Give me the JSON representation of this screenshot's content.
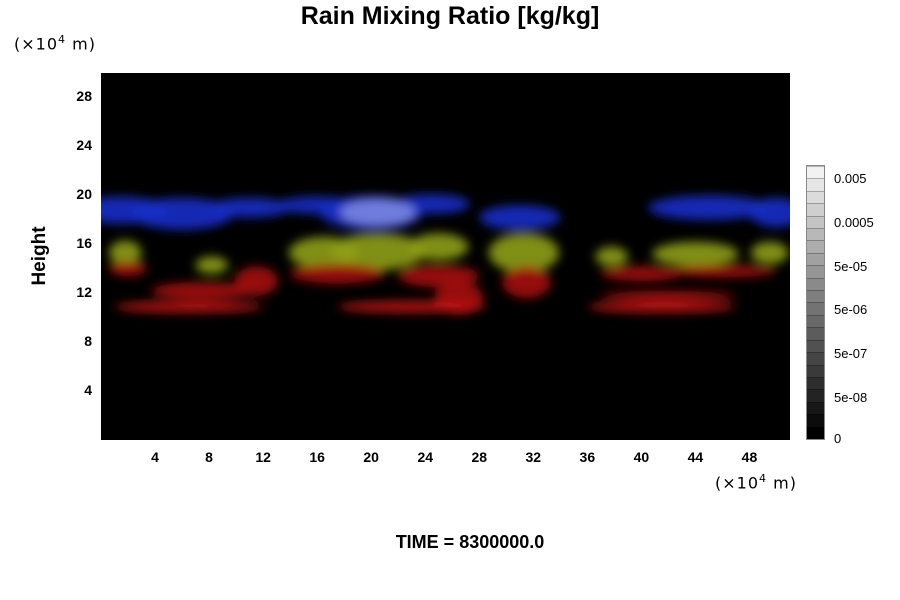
{
  "chart_data": {
    "type": "heatmap",
    "title": "Rain Mixing Ratio [kg/kg]",
    "ylabel": "Height",
    "xlabel": "",
    "x_unit_prefix": "(×10",
    "x_unit_exp": "4",
    "x_unit_suffix": " m)",
    "y_unit_prefix": "(×10",
    "y_unit_exp": "4",
    "y_unit_suffix": " m)",
    "xlim": [
      0,
      51
    ],
    "ylim": [
      0,
      30
    ],
    "x_ticks": [
      4,
      8,
      12,
      16,
      20,
      24,
      28,
      32,
      36,
      40,
      44,
      48
    ],
    "y_ticks": [
      4,
      8,
      12,
      16,
      20,
      24,
      28
    ],
    "background": "#000000",
    "colorbar": {
      "labels": [
        "0.005",
        "0.0005",
        "5e-05",
        "5e-06",
        "5e-07",
        "5e-08",
        "0"
      ],
      "levels": 22,
      "colors": [
        "#000000",
        "#f2f2f2"
      ]
    },
    "layers": [
      {
        "color": "#1a2ec8",
        "blobs": [
          {
            "x": 1.5,
            "y": 18.8,
            "rx": 3.5,
            "ry": 1.1
          },
          {
            "x": 6,
            "y": 18.5,
            "rx": 3.8,
            "ry": 1.3
          },
          {
            "x": 11,
            "y": 19.0,
            "rx": 3,
            "ry": 0.8
          },
          {
            "x": 16,
            "y": 19.2,
            "rx": 3,
            "ry": 0.7
          },
          {
            "x": 20,
            "y": 18.6,
            "rx": 3.8,
            "ry": 1.4
          },
          {
            "x": 24.5,
            "y": 19.3,
            "rx": 2.8,
            "ry": 0.8
          },
          {
            "x": 31,
            "y": 18.2,
            "rx": 3,
            "ry": 1.0
          },
          {
            "x": 45,
            "y": 19.0,
            "rx": 4.5,
            "ry": 1.0
          },
          {
            "x": 50,
            "y": 18.6,
            "rx": 2,
            "ry": 1.2
          }
        ]
      },
      {
        "color": "#7a86e0",
        "blobs": [
          {
            "x": 20.5,
            "y": 18.6,
            "rx": 2.8,
            "ry": 1.1
          }
        ]
      },
      {
        "color": "#8e9e18",
        "blobs": [
          {
            "x": 1.8,
            "y": 15.3,
            "rx": 1.2,
            "ry": 1.0
          },
          {
            "x": 8.2,
            "y": 14.3,
            "rx": 1.2,
            "ry": 0.7
          },
          {
            "x": 16.5,
            "y": 15.3,
            "rx": 2.6,
            "ry": 1.3
          },
          {
            "x": 20.5,
            "y": 15.4,
            "rx": 3.5,
            "ry": 1.5
          },
          {
            "x": 25,
            "y": 15.8,
            "rx": 2.2,
            "ry": 1.1
          },
          {
            "x": 31.3,
            "y": 15.3,
            "rx": 2.6,
            "ry": 1.6
          },
          {
            "x": 37.8,
            "y": 15.0,
            "rx": 1.2,
            "ry": 0.8
          },
          {
            "x": 44,
            "y": 15.2,
            "rx": 3.2,
            "ry": 1.0
          },
          {
            "x": 49.5,
            "y": 15.3,
            "rx": 1.4,
            "ry": 0.9
          }
        ]
      },
      {
        "color": "#a51010",
        "blobs": [
          {
            "x": 2,
            "y": 14.0,
            "rx": 1.4,
            "ry": 0.6
          },
          {
            "x": 7.5,
            "y": 12.2,
            "rx": 3.8,
            "ry": 0.7
          },
          {
            "x": 11.5,
            "y": 13.0,
            "rx": 1.6,
            "ry": 1.2
          },
          {
            "x": 17.5,
            "y": 13.6,
            "rx": 3.5,
            "ry": 0.8
          },
          {
            "x": 25,
            "y": 13.4,
            "rx": 3,
            "ry": 0.9
          },
          {
            "x": 26.5,
            "y": 11.6,
            "rx": 1.8,
            "ry": 1.3
          },
          {
            "x": 31.5,
            "y": 12.9,
            "rx": 1.8,
            "ry": 1.3
          },
          {
            "x": 40,
            "y": 13.6,
            "rx": 3,
            "ry": 0.6
          },
          {
            "x": 46,
            "y": 13.8,
            "rx": 4,
            "ry": 0.5
          },
          {
            "x": 42,
            "y": 11.8,
            "rx": 5,
            "ry": 0.4
          }
        ]
      },
      {
        "color": "#c81414",
        "blobs": [
          {
            "x": 6.5,
            "y": 10.9,
            "rx": 5.5,
            "ry": 0.45
          },
          {
            "x": 23,
            "y": 10.9,
            "rx": 5.5,
            "ry": 0.45
          },
          {
            "x": 41.5,
            "y": 10.9,
            "rx": 5.5,
            "ry": 0.45
          }
        ]
      }
    ]
  },
  "footer": {
    "time_label": "TIME = 8300000.0"
  }
}
